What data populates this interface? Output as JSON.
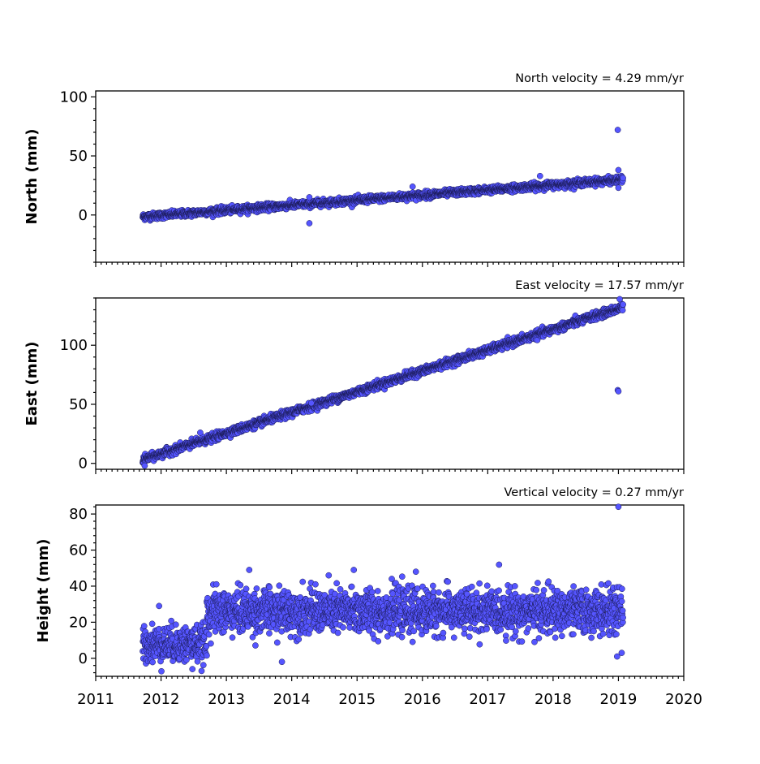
{
  "chart_data": [
    {
      "type": "scatter",
      "title": "North velocity = 4.29 mm/yr",
      "ylabel": "North (mm)",
      "xlim": [
        2011,
        2020
      ],
      "ylim": [
        -40,
        105
      ],
      "yticks": [
        0,
        50,
        100
      ],
      "trend": {
        "start_year": 2011.72,
        "end_year": 2019.07,
        "start_value": -1.5,
        "slope_per_year": 4.29
      },
      "noise_amplitude": 1.4,
      "outliers": [
        {
          "x": 2014.27,
          "y": -7
        },
        {
          "x": 2014.27,
          "y": 15
        },
        {
          "x": 2015.85,
          "y": 24
        },
        {
          "x": 2017.8,
          "y": 33
        },
        {
          "x": 2018.99,
          "y": 72
        },
        {
          "x": 2019.0,
          "y": 38
        },
        {
          "x": 2019.0,
          "y": 23
        }
      ],
      "series": [
        {
          "color": "#5555ff"
        }
      ]
    },
    {
      "type": "scatter",
      "title": "East velocity = 17.57 mm/yr",
      "ylabel": "East (mm)",
      "xlim": [
        2011,
        2020
      ],
      "ylim": [
        -5,
        140
      ],
      "yticks": [
        0,
        50,
        100
      ],
      "trend": {
        "start_year": 2011.72,
        "end_year": 2019.07,
        "start_value": 3,
        "slope_per_year": 17.57
      },
      "noise_amplitude": 1.6,
      "outliers": [
        {
          "x": 2011.75,
          "y": -2
        },
        {
          "x": 2012.6,
          "y": 26
        },
        {
          "x": 2014.3,
          "y": 51
        },
        {
          "x": 2018.99,
          "y": 62
        },
        {
          "x": 2019.0,
          "y": 61
        },
        {
          "x": 2019.02,
          "y": 139
        }
      ],
      "series": [
        {
          "color": "#5555ff"
        }
      ]
    },
    {
      "type": "scatter",
      "title": "Vertical velocity = 0.27 mm/yr",
      "ylabel": "Height (mm)",
      "xlabel_ticks": [
        "2011",
        "2012",
        "2013",
        "2014",
        "2015",
        "2016",
        "2017",
        "2018",
        "2019",
        "2020"
      ],
      "xlim": [
        2011,
        2020
      ],
      "ylim": [
        -10,
        85
      ],
      "yticks": [
        0,
        20,
        40,
        60,
        80
      ],
      "segments": [
        {
          "from": 2011.72,
          "to": 2012.7,
          "mean": 8,
          "spread": 9
        },
        {
          "from": 2012.7,
          "to": 2019.07,
          "mean": 26,
          "spread": 11
        }
      ],
      "outliers": [
        {
          "x": 2011.97,
          "y": 29
        },
        {
          "x": 2013.35,
          "y": 49
        },
        {
          "x": 2014.95,
          "y": 49
        },
        {
          "x": 2015.9,
          "y": 48
        },
        {
          "x": 2013.85,
          "y": -2
        },
        {
          "x": 2012.48,
          "y": -6
        },
        {
          "x": 2019.0,
          "y": 84
        },
        {
          "x": 2018.98,
          "y": 1
        },
        {
          "x": 2019.05,
          "y": 3
        }
      ],
      "series": [
        {
          "color": "#5555ff"
        }
      ]
    }
  ]
}
